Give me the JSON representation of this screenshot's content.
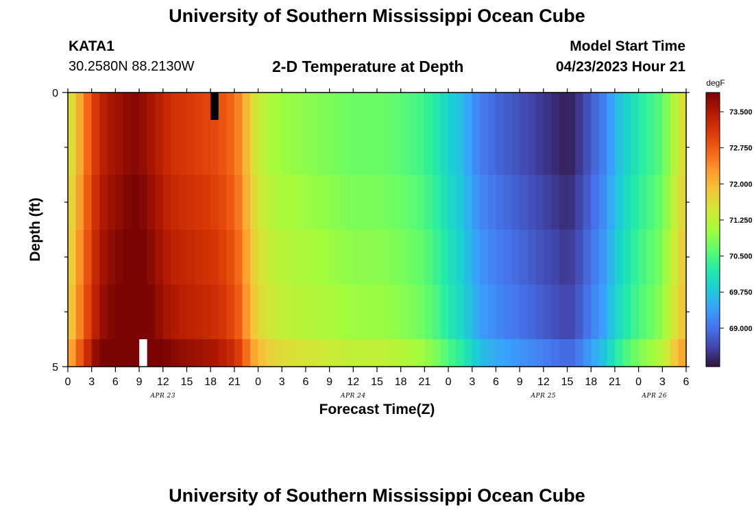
{
  "header": {
    "title": "University of Southern Mississippi Ocean Cube",
    "station_id": "KATA1",
    "coordinates": "30.2580N  88.2130W",
    "subtitle": "2-D Temperature at Depth",
    "model_label": "Model Start Time",
    "model_time": "04/23/2023 Hour 21"
  },
  "footer": {
    "title": "University of Southern Mississippi Ocean Cube"
  },
  "chart_data": {
    "type": "heatmap",
    "title": "2-D Temperature at Depth",
    "xlabel": "Forecast Time(Z)",
    "ylabel": "Depth (ft)",
    "x_ticks": [
      "0",
      "3",
      "6",
      "9",
      "12",
      "15",
      "18",
      "21",
      "0",
      "3",
      "6",
      "9",
      "12",
      "15",
      "18",
      "21",
      "0",
      "3",
      "6",
      "9",
      "12",
      "15",
      "18",
      "21",
      "0",
      "3",
      "6"
    ],
    "x_day_labels": [
      "APR 23",
      "APR 24",
      "APR 25",
      "APR 26"
    ],
    "y_ticks": [
      "0",
      "5"
    ],
    "ylim": [
      0,
      5
    ],
    "colorbar": {
      "unit": "degF",
      "labels": [
        "73.500",
        "72.750",
        "72.000",
        "71.250",
        "70.500",
        "69.750",
        "69.000"
      ],
      "range": [
        68.2,
        73.9
      ],
      "colors": [
        "#30123b",
        "#4145ab",
        "#4675ed",
        "#39a2fc",
        "#1bcfd4",
        "#24eca6",
        "#61fc6c",
        "#a4fc3b",
        "#d1e834",
        "#f3c63a",
        "#fe9b2d",
        "#f36315",
        "#d93806",
        "#b11901",
        "#7a0403"
      ]
    },
    "depth_bands": 6,
    "time_start_hour": 0,
    "time_end_hour": 78,
    "profile_hours": [
      0,
      1,
      2,
      3,
      4,
      5,
      6,
      7,
      8,
      9,
      11,
      13,
      15,
      17,
      19,
      21,
      22,
      23,
      24,
      25,
      26,
      27,
      30,
      33,
      36,
      39,
      42,
      45,
      47,
      48,
      50,
      51,
      52,
      54,
      57,
      60,
      63,
      64,
      66,
      68,
      69,
      72,
      75,
      76,
      77,
      78
    ],
    "profile_temps": [
      71.3,
      71.9,
      72.4,
      72.9,
      73.3,
      73.5,
      73.6,
      73.7,
      73.8,
      73.8,
      73.5,
      73.2,
      73.1,
      73.0,
      72.9,
      72.6,
      72.3,
      71.7,
      71.4,
      71.2,
      71.1,
      71.0,
      70.9,
      70.8,
      70.7,
      70.7,
      70.6,
      70.4,
      70.1,
      69.9,
      69.6,
      69.3,
      69.1,
      68.9,
      68.7,
      68.5,
      68.3,
      68.4,
      68.8,
      69.2,
      69.6,
      70.2,
      70.6,
      71.0,
      71.4,
      71.7
    ],
    "band_offsets": [
      0.0,
      0.0,
      0.1,
      0.2,
      0.3,
      0.6
    ],
    "missing_cells": [
      {
        "hour": 18.5,
        "band": 0,
        "color": "#000000"
      },
      {
        "hour": 9.5,
        "band": 5,
        "color": "#ffffff"
      }
    ]
  }
}
